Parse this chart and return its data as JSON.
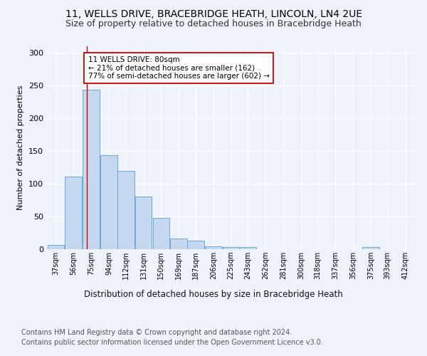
{
  "title1": "11, WELLS DRIVE, BRACEBRIDGE HEATH, LINCOLN, LN4 2UE",
  "title2": "Size of property relative to detached houses in Bracebridge Heath",
  "xlabel": "Distribution of detached houses by size in Bracebridge Heath",
  "ylabel": "Number of detached properties",
  "footer1": "Contains HM Land Registry data © Crown copyright and database right 2024.",
  "footer2": "Contains public sector information licensed under the Open Government Licence v3.0.",
  "annotation_line1": "11 WELLS DRIVE: 80sqm",
  "annotation_line2": "← 21% of detached houses are smaller (162)",
  "annotation_line3": "77% of semi-detached houses are larger (602) →",
  "bar_color": "#c5d8f0",
  "bar_edge_color": "#6aaad4",
  "property_line_x": 80,
  "categories": [
    "37sqm",
    "56sqm",
    "75sqm",
    "94sqm",
    "112sqm",
    "131sqm",
    "150sqm",
    "169sqm",
    "187sqm",
    "206sqm",
    "225sqm",
    "243sqm",
    "262sqm",
    "281sqm",
    "300sqm",
    "318sqm",
    "337sqm",
    "356sqm",
    "375sqm",
    "393sqm",
    "412sqm"
  ],
  "bin_edges": [
    37,
    56,
    75,
    94,
    112,
    131,
    150,
    169,
    187,
    206,
    225,
    243,
    262,
    281,
    300,
    318,
    337,
    356,
    375,
    393,
    412
  ],
  "bin_width": 19,
  "values": [
    7,
    111,
    244,
    144,
    120,
    81,
    48,
    16,
    13,
    4,
    3,
    3,
    0,
    0,
    0,
    0,
    0,
    0,
    3,
    0,
    0
  ],
  "ylim": [
    0,
    310
  ],
  "yticks": [
    0,
    50,
    100,
    150,
    200,
    250,
    300
  ],
  "background_color": "#eef2fa",
  "grid_color": "#ffffff",
  "annotation_box_color": "#ffffff",
  "annotation_box_edge": "#cc0000",
  "property_line_color": "#cc0000",
  "title1_fontsize": 10,
  "title2_fontsize": 9,
  "xlabel_fontsize": 8.5,
  "ylabel_fontsize": 8,
  "tick_fontsize": 7,
  "footer_fontsize": 7,
  "annotation_fontsize": 7.5
}
